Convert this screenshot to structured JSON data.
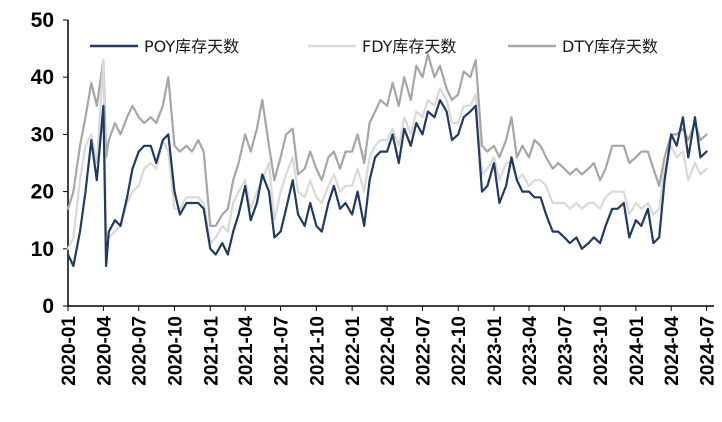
{
  "chart_data": {
    "type": "line",
    "title": "",
    "xlabel": "",
    "ylabel": "",
    "ylim": [
      0,
      50
    ],
    "y_ticks": [
      "0",
      "10",
      "20",
      "30",
      "40",
      "50"
    ],
    "x_ticks": [
      "2020-01",
      "2020-04",
      "2020-07",
      "2020-10",
      "2021-01",
      "2021-04",
      "2021-07",
      "2021-10",
      "2022-01",
      "2022-04",
      "2022-07",
      "2022-10",
      "2023-01",
      "2023-04",
      "2023-07",
      "2023-10",
      "2024-01",
      "2024-04",
      "2024-07"
    ],
    "grid": false,
    "legend_position": "top",
    "colors": {
      "POY": "#1f3b63",
      "FDY": "#d9d9d9",
      "DTY": "#a6a6a6"
    },
    "series": [
      {
        "name": "POY库存天数",
        "x": [
          "2020-01",
          "2020-01-15",
          "2020-02",
          "2020-02-15",
          "2020-03",
          "2020-03-15",
          "2020-04",
          "2020-04-08",
          "2020-04-15",
          "2020-05",
          "2020-05-15",
          "2020-06",
          "2020-06-15",
          "2020-07",
          "2020-07-15",
          "2020-08",
          "2020-08-15",
          "2020-09",
          "2020-09-15",
          "2020-10",
          "2020-10-15",
          "2020-11",
          "2020-11-15",
          "2020-12",
          "2020-12-15",
          "2021-01",
          "2021-01-15",
          "2021-02",
          "2021-02-15",
          "2021-03",
          "2021-03-15",
          "2021-04",
          "2021-04-15",
          "2021-05",
          "2021-05-15",
          "2021-06",
          "2021-06-15",
          "2021-07",
          "2021-07-15",
          "2021-08",
          "2021-08-15",
          "2021-09",
          "2021-09-15",
          "2021-10",
          "2021-10-15",
          "2021-11",
          "2021-11-15",
          "2021-12",
          "2021-12-15",
          "2022-01",
          "2022-01-15",
          "2022-02",
          "2022-02-15",
          "2022-03",
          "2022-03-15",
          "2022-04",
          "2022-04-15",
          "2022-05",
          "2022-05-15",
          "2022-06",
          "2022-06-15",
          "2022-07",
          "2022-07-15",
          "2022-08",
          "2022-08-15",
          "2022-09",
          "2022-09-15",
          "2022-10",
          "2022-10-15",
          "2022-11",
          "2022-11-15",
          "2022-12",
          "2022-12-15",
          "2023-01",
          "2023-01-15",
          "2023-02",
          "2023-02-15",
          "2023-03",
          "2023-03-15",
          "2023-04",
          "2023-04-15",
          "2023-05",
          "2023-05-15",
          "2023-06",
          "2023-06-15",
          "2023-07",
          "2023-07-15",
          "2023-08",
          "2023-08-15",
          "2023-09",
          "2023-09-15",
          "2023-10",
          "2023-10-15",
          "2023-11",
          "2023-11-15",
          "2023-12",
          "2023-12-15",
          "2024-01",
          "2024-01-15",
          "2024-02",
          "2024-02-15",
          "2024-03",
          "2024-03-15",
          "2024-04",
          "2024-04-15",
          "2024-05",
          "2024-05-15",
          "2024-06",
          "2024-06-15",
          "2024-07"
        ],
        "values": [
          9,
          7,
          13,
          20,
          29,
          22,
          35,
          7,
          13,
          15,
          14,
          19,
          24,
          27,
          28,
          28,
          25,
          29,
          30,
          20,
          16,
          18,
          18,
          18,
          17,
          10,
          9,
          11,
          9,
          13,
          16,
          21,
          15,
          18,
          23,
          20,
          12,
          13,
          17,
          22,
          16,
          14,
          18,
          14,
          13,
          18,
          21,
          17,
          18,
          16,
          20,
          14,
          22,
          26,
          27,
          27,
          30,
          25,
          31,
          28,
          32,
          30,
          34,
          33,
          36,
          34,
          29,
          30,
          33,
          34,
          35,
          20,
          21,
          25,
          18,
          21,
          26,
          22,
          20,
          20,
          19,
          19,
          16,
          13,
          13,
          12,
          11,
          12,
          10,
          11,
          12,
          11,
          14,
          17,
          17,
          18,
          12,
          15,
          14,
          17,
          11,
          12,
          22,
          30,
          28,
          33,
          26,
          33,
          26,
          27
        ],
        "color": "#1f3b63"
      },
      {
        "name": "FDY库存天数",
        "x": [
          "2020-01",
          "2020-01-15",
          "2020-02",
          "2020-02-15",
          "2020-03",
          "2020-03-15",
          "2020-04",
          "2020-04-08",
          "2020-04-15",
          "2020-05",
          "2020-05-15",
          "2020-06",
          "2020-06-15",
          "2020-07",
          "2020-07-15",
          "2020-08",
          "2020-08-15",
          "2020-09",
          "2020-09-15",
          "2020-10",
          "2020-10-15",
          "2020-11",
          "2020-11-15",
          "2020-12",
          "2020-12-15",
          "2021-01",
          "2021-01-15",
          "2021-02",
          "2021-02-15",
          "2021-03",
          "2021-03-15",
          "2021-04",
          "2021-04-15",
          "2021-05",
          "2021-05-15",
          "2021-06",
          "2021-06-15",
          "2021-07",
          "2021-07-15",
          "2021-08",
          "2021-08-15",
          "2021-09",
          "2021-09-15",
          "2021-10",
          "2021-10-15",
          "2021-11",
          "2021-11-15",
          "2021-12",
          "2021-12-15",
          "2022-01",
          "2022-01-15",
          "2022-02",
          "2022-02-15",
          "2022-03",
          "2022-03-15",
          "2022-04",
          "2022-04-15",
          "2022-05",
          "2022-05-15",
          "2022-06",
          "2022-06-15",
          "2022-07",
          "2022-07-15",
          "2022-08",
          "2022-08-15",
          "2022-09",
          "2022-09-15",
          "2022-10",
          "2022-10-15",
          "2022-11",
          "2022-11-15",
          "2022-12",
          "2022-12-15",
          "2023-01",
          "2023-01-15",
          "2023-02",
          "2023-02-15",
          "2023-03",
          "2023-03-15",
          "2023-04",
          "2023-04-15",
          "2023-05",
          "2023-05-15",
          "2023-06",
          "2023-06-15",
          "2023-07",
          "2023-07-15",
          "2023-08",
          "2023-08-15",
          "2023-09",
          "2023-09-15",
          "2023-10",
          "2023-10-15",
          "2023-11",
          "2023-11-15",
          "2023-12",
          "2023-12-15",
          "2024-01",
          "2024-01-15",
          "2024-02",
          "2024-02-15",
          "2024-03",
          "2024-03-15",
          "2024-04",
          "2024-04-15",
          "2024-05",
          "2024-05-15",
          "2024-06",
          "2024-06-15",
          "2024-07"
        ],
        "values": [
          10,
          12,
          22,
          28,
          30,
          25,
          43,
          12,
          12,
          13,
          14,
          18,
          20,
          21,
          24,
          25,
          24,
          29,
          27,
          17,
          17,
          19,
          19,
          19,
          18,
          11,
          12,
          14,
          13,
          18,
          20,
          22,
          17,
          20,
          22,
          25,
          15,
          20,
          23,
          26,
          20,
          19,
          22,
          19,
          18,
          21,
          23,
          20,
          21,
          21,
          24,
          20,
          26,
          28,
          29,
          29,
          31,
          28,
          33,
          30,
          34,
          33,
          36,
          35,
          38,
          36,
          32,
          32,
          35,
          35,
          37,
          23,
          24,
          26,
          22,
          25,
          25,
          22,
          23,
          21,
          22,
          22,
          21,
          18,
          18,
          18,
          17,
          18,
          17,
          18,
          18,
          17,
          19,
          20,
          20,
          20,
          16,
          18,
          17,
          18,
          16,
          17,
          24,
          28,
          26,
          27,
          22,
          25,
          23,
          24
        ],
        "color": "#d9d9d9"
      },
      {
        "name": "DTY库存天数",
        "x": [
          "2020-01",
          "2020-01-15",
          "2020-02",
          "2020-02-15",
          "2020-03",
          "2020-03-15",
          "2020-04",
          "2020-04-08",
          "2020-04-15",
          "2020-05",
          "2020-05-15",
          "2020-06",
          "2020-06-15",
          "2020-07",
          "2020-07-15",
          "2020-08",
          "2020-08-15",
          "2020-09",
          "2020-09-15",
          "2020-10",
          "2020-10-15",
          "2020-11",
          "2020-11-15",
          "2020-12",
          "2020-12-15",
          "2021-01",
          "2021-01-15",
          "2021-02",
          "2021-02-15",
          "2021-03",
          "2021-03-15",
          "2021-04",
          "2021-04-15",
          "2021-05",
          "2021-05-15",
          "2021-06",
          "2021-06-15",
          "2021-07",
          "2021-07-15",
          "2021-08",
          "2021-08-15",
          "2021-09",
          "2021-09-15",
          "2021-10",
          "2021-10-15",
          "2021-11",
          "2021-11-15",
          "2021-12",
          "2021-12-15",
          "2022-01",
          "2022-01-15",
          "2022-02",
          "2022-02-15",
          "2022-03",
          "2022-03-15",
          "2022-04",
          "2022-04-15",
          "2022-05",
          "2022-05-15",
          "2022-06",
          "2022-06-15",
          "2022-07",
          "2022-07-15",
          "2022-08",
          "2022-08-15",
          "2022-09",
          "2022-09-15",
          "2022-10",
          "2022-10-15",
          "2022-11",
          "2022-11-15",
          "2022-12",
          "2022-12-15",
          "2023-01",
          "2023-01-15",
          "2023-02",
          "2023-02-15",
          "2023-03",
          "2023-03-15",
          "2023-04",
          "2023-04-15",
          "2023-05",
          "2023-05-15",
          "2023-06",
          "2023-06-15",
          "2023-07",
          "2023-07-15",
          "2023-08",
          "2023-08-15",
          "2023-09",
          "2023-09-15",
          "2023-10",
          "2023-10-15",
          "2023-11",
          "2023-11-15",
          "2023-12",
          "2023-12-15",
          "2024-01",
          "2024-01-15",
          "2024-02",
          "2024-02-15",
          "2024-03",
          "2024-03-15",
          "2024-04",
          "2024-04-15",
          "2024-05",
          "2024-05-15",
          "2024-06",
          "2024-06-15",
          "2024-07"
        ],
        "values": [
          17,
          20,
          28,
          33,
          39,
          35,
          43,
          26,
          29,
          32,
          30,
          33,
          35,
          33,
          32,
          33,
          32,
          35,
          40,
          28,
          27,
          28,
          27,
          29,
          27,
          14,
          14,
          16,
          17,
          22,
          25,
          30,
          27,
          31,
          36,
          28,
          22,
          26,
          30,
          31,
          23,
          24,
          27,
          24,
          22,
          26,
          27,
          24,
          27,
          27,
          30,
          25,
          32,
          34,
          36,
          35,
          39,
          35,
          40,
          36,
          42,
          40,
          44,
          40,
          42,
          38,
          36,
          37,
          41,
          40,
          43,
          28,
          27,
          28,
          26,
          29,
          33,
          26,
          28,
          26,
          29,
          28,
          26,
          24,
          25,
          24,
          23,
          24,
          23,
          24,
          25,
          22,
          24,
          28,
          28,
          28,
          25,
          26,
          27,
          27,
          24,
          21,
          26,
          30,
          30,
          31,
          29,
          32,
          29,
          30
        ],
        "color": "#a6a6a6"
      }
    ]
  }
}
